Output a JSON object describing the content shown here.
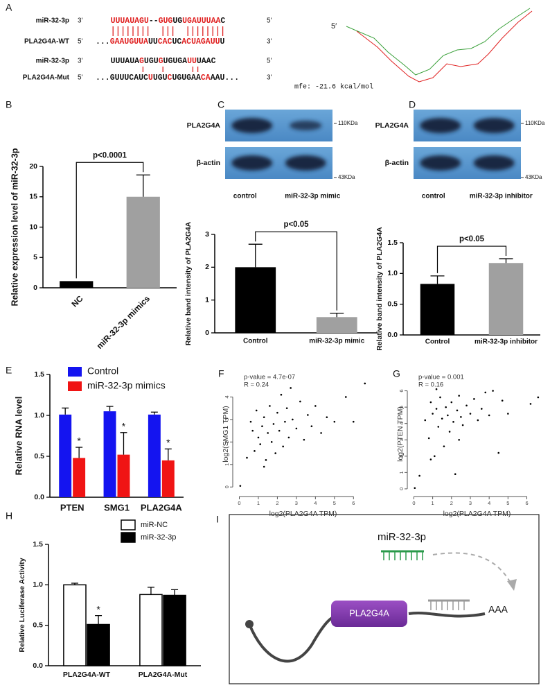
{
  "sequence_alignment": {
    "letter": "A",
    "rows": [
      {
        "name": "miR-32-3p",
        "left": "3'",
        "right": "5'",
        "segments": [
          {
            "text": "UUUAUAGU",
            "color": "#e02020"
          },
          {
            "text": "--",
            "color": "#111111"
          },
          {
            "text": "GUG",
            "color": "#e02020"
          },
          {
            "text": "UG",
            "color": "#111111"
          },
          {
            "text": "UGAUUUAA",
            "color": "#e02020"
          },
          {
            "text": "C",
            "color": "#111111"
          }
        ]
      },
      {
        "name": "PLA2G4A-WT",
        "left": "5'",
        "right": "3'",
        "segments": [
          {
            "text": "...",
            "color": "#111111"
          },
          {
            "text": "GAAUGUUA",
            "color": "#e02020"
          },
          {
            "text": "UU",
            "color": "#111111"
          },
          {
            "text": "CAC",
            "color": "#e02020"
          },
          {
            "text": "UC",
            "color": "#111111"
          },
          {
            "text": "ACUAGAUU",
            "color": "#e02020"
          },
          {
            "text": "U",
            "color": "#111111"
          }
        ]
      },
      {
        "name": "miR-32-3p",
        "left": "3'",
        "right": "5'",
        "segments": [
          {
            "text": "UUUAUA",
            "color": "#111111"
          },
          {
            "text": "G",
            "color": "#e02020"
          },
          {
            "text": "UGU",
            "color": "#111111"
          },
          {
            "text": "G",
            "color": "#e02020"
          },
          {
            "text": "UGUGA",
            "color": "#111111"
          },
          {
            "text": "UU",
            "color": "#e02020"
          },
          {
            "text": "UAAC",
            "color": "#111111"
          }
        ]
      },
      {
        "name": "PLA2G4A-Mut",
        "left": "5'",
        "right": "3'",
        "segments": [
          {
            "text": "...GUUUCAUC",
            "color": "#111111"
          },
          {
            "text": "U",
            "color": "#e02020"
          },
          {
            "text": "UGU",
            "color": "#111111"
          },
          {
            "text": "C",
            "color": "#e02020"
          },
          {
            "text": "UGUGAA",
            "color": "#111111"
          },
          {
            "text": "C",
            "color": "#e02020"
          },
          {
            "text": "A",
            "color": "#e02020"
          },
          {
            "text": "AAU...",
            "color": "#111111"
          }
        ]
      }
    ]
  },
  "structure": {
    "end_label": "5′",
    "mfe": "mfe: -21.6 kcal/mol"
  },
  "blots": [
    {
      "rows": [
        {
          "label": "PLA2G4A",
          "size": "110KDa"
        },
        {
          "label": "β-actin",
          "size": "43KDa"
        }
      ],
      "lanes": [
        "control",
        "miR-32-3p mimic"
      ]
    },
    {
      "rows": [
        {
          "label": "PLA2G4A",
          "size": "110KDa"
        },
        {
          "label": "β-actin",
          "size": "43KDa"
        }
      ],
      "lanes": [
        "control",
        "miR-32-3p inhibitor"
      ]
    }
  ],
  "chart_data": [
    {
      "type": "bar",
      "letter": "B",
      "ylabel": "Relative expression level of miR-32-3p",
      "categories": [
        "NC",
        "miR-32-3p mimics"
      ],
      "values": [
        1.1,
        15
      ],
      "errors": [
        0,
        3.6
      ],
      "colors": [
        "#000000",
        "#a0a0a0"
      ],
      "ylim": [
        0,
        20
      ],
      "yticks": [
        0,
        5,
        10,
        15,
        20
      ],
      "annotation": "p<0.0001",
      "xtick_rotation": -45
    },
    {
      "type": "bar",
      "letter": "C",
      "ylabel": "Relative  band intensity of PLA2G4A",
      "categories": [
        "Control",
        "miR-32-3p mimic"
      ],
      "values": [
        2.0,
        0.48
      ],
      "errors": [
        0.7,
        0.12
      ],
      "colors": [
        "#000000",
        "#a0a0a0"
      ],
      "ylim": [
        0,
        3
      ],
      "yticks": [
        0,
        1,
        2,
        3
      ],
      "annotation": "p<0.05"
    },
    {
      "type": "bar",
      "letter": "D",
      "ylabel": "Relative  band intensity of PLA2G4A",
      "categories": [
        "Control",
        "miR-32-3p inhibitor"
      ],
      "values": [
        0.83,
        1.17
      ],
      "errors": [
        0.13,
        0.07
      ],
      "colors": [
        "#000000",
        "#a0a0a0"
      ],
      "ylim": [
        0,
        1.5
      ],
      "yticks": [
        {
          "value": 0,
          "label": "0.0"
        },
        0.5,
        {
          "value": 1,
          "label": "1.0"
        },
        1.5
      ],
      "annotation": "p<0.05"
    },
    {
      "type": "bar",
      "letter": "E",
      "ylabel": "Relative  RNA level",
      "categories": [
        "PTEN",
        "SMG1",
        "PLA2G4A"
      ],
      "ylim": [
        0,
        1.5
      ],
      "yticks": [
        {
          "value": 0,
          "label": "0.0"
        },
        0.5,
        {
          "value": 1,
          "label": "1.0"
        },
        1.5
      ],
      "series": [
        {
          "name": "Control",
          "color": "#1414f0",
          "values": [
            1.01,
            1.05,
            1.01
          ],
          "errors": [
            0.08,
            0.06,
            0.03
          ]
        },
        {
          "name": "miR-32-3p mimics",
          "color": "#f01414",
          "values": [
            0.48,
            0.52,
            0.45
          ],
          "errors": [
            0.13,
            0.27,
            0.14
          ],
          "significance": [
            "*",
            "*",
            "*"
          ]
        }
      ]
    },
    {
      "type": "scatter",
      "letter": "F",
      "xlabel": "log2(PLA2G4A TPM)",
      "ylabel": "log2(SMG1 TPM)",
      "annotations": [
        "p-value = 4.7e-07",
        "R = 0.24"
      ],
      "color": "#000000",
      "xlim": [
        -0.2,
        6.9
      ],
      "ylim": [
        -0.3,
        5.0
      ],
      "xticks": [
        0,
        1,
        2,
        3,
        4,
        5,
        6
      ],
      "yticks": [
        0,
        1,
        2,
        3,
        4
      ],
      "x": [
        0.05,
        0.4,
        0.6,
        0.8,
        0.9,
        1.0,
        1.1,
        1.2,
        1.3,
        1.4,
        1.5,
        1.6,
        1.7,
        1.8,
        1.9,
        2.0,
        2.1,
        2.2,
        2.3,
        2.4,
        2.5,
        2.6,
        2.8,
        3.0,
        3.2,
        3.4,
        3.6,
        3.8,
        4.0,
        4.3,
        4.6,
        5.0,
        5.6,
        6.0,
        6.6,
        1.3,
        2.7,
        0.7
      ],
      "y": [
        0.05,
        1.3,
        2.9,
        1.6,
        3.4,
        2.2,
        1.9,
        2.7,
        3.1,
        1.2,
        2.4,
        3.6,
        2.0,
        2.8,
        1.5,
        3.3,
        2.5,
        4.1,
        1.8,
        2.9,
        3.5,
        2.2,
        3.0,
        2.6,
        3.8,
        2.1,
        3.2,
        2.7,
        3.6,
        2.4,
        3.1,
        2.9,
        4.0,
        2.9,
        4.6,
        0.9,
        4.4,
        2.5
      ]
    },
    {
      "type": "scatter",
      "letter": "G",
      "xlabel": "log2(PLA2G4A TPM)",
      "ylabel": "log2(PTEN TPM)",
      "annotations": [
        "p-value = 0.001",
        "R = 0.16"
      ],
      "color": "#000000",
      "xlim": [
        -0.2,
        6.9
      ],
      "ylim": [
        -0.3,
        7.0
      ],
      "xticks": [
        0,
        1,
        2,
        3,
        4,
        5,
        6
      ],
      "yticks": [
        0,
        1,
        2,
        3,
        4,
        5,
        6
      ],
      "x": [
        0.05,
        0.3,
        0.6,
        0.8,
        0.9,
        1.0,
        1.1,
        1.2,
        1.3,
        1.4,
        1.5,
        1.6,
        1.7,
        1.8,
        1.9,
        2.0,
        2.1,
        2.2,
        2.3,
        2.4,
        2.5,
        2.6,
        2.8,
        3.0,
        3.2,
        3.4,
        3.6,
        3.8,
        4.0,
        4.2,
        4.5,
        4.7,
        5.0,
        6.2,
        6.6,
        1.2,
        2.4,
        0.9
      ],
      "y": [
        0.05,
        0.8,
        4.2,
        3.1,
        5.3,
        4.6,
        2.0,
        4.9,
        3.8,
        5.6,
        4.3,
        2.6,
        5.0,
        4.5,
        3.5,
        5.3,
        4.1,
        0.9,
        4.8,
        5.7,
        4.4,
        3.9,
        5.1,
        4.6,
        5.5,
        4.2,
        4.9,
        5.9,
        4.5,
        6.0,
        2.2,
        5.4,
        4.6,
        5.2,
        5.6,
        6.1,
        3.0,
        1.8
      ]
    },
    {
      "type": "bar",
      "letter": "H",
      "ylabel": "Relative Luciferase Activity",
      "categories": [
        "PLA2G4A-WT",
        "PLA2G4A-Mut"
      ],
      "ylim": [
        0,
        1.5
      ],
      "edgecolor": "#000000",
      "yticks": [
        {
          "value": 0,
          "label": "0.0"
        },
        0.5,
        {
          "value": 1,
          "label": "1.0"
        },
        1.5
      ],
      "series": [
        {
          "name": "miR-NC",
          "color": "#ffffff",
          "values": [
            1.0,
            0.88
          ],
          "errors": [
            0.02,
            0.09
          ]
        },
        {
          "name": "miR-32-3p",
          "color": "#000000",
          "values": [
            0.51,
            0.87
          ],
          "errors": [
            0.11,
            0.07
          ],
          "significance": [
            "*",
            null
          ]
        }
      ]
    }
  ],
  "diagram": {
    "letter": "I",
    "mirna": "miR-32-3p",
    "gene": "PLA2G4A",
    "tail": "AAA"
  }
}
